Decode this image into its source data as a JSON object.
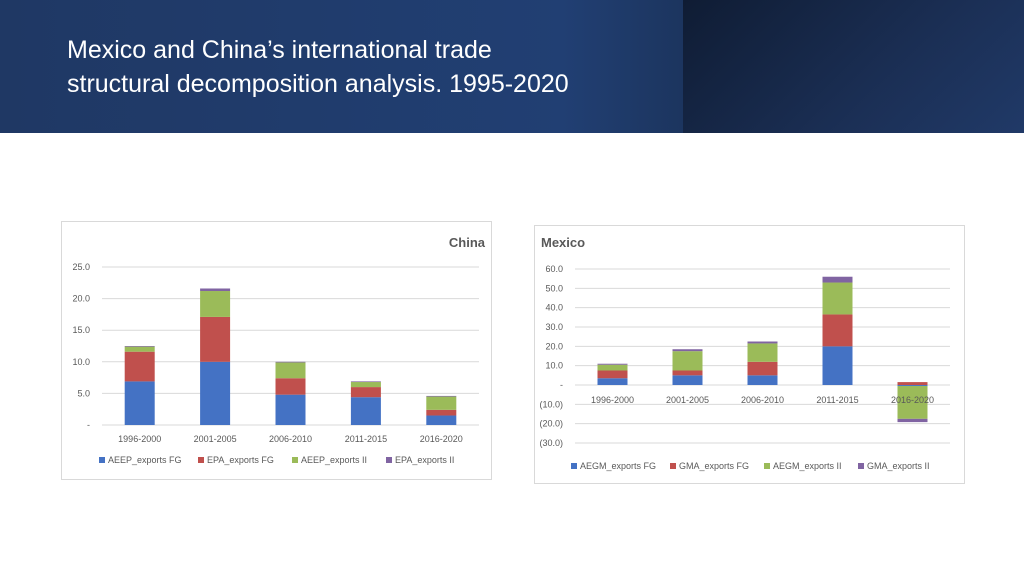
{
  "slide": {
    "title_line1": "Mexico and China’s international trade",
    "title_line2": "structural decomposition analysis. 1995-2020"
  },
  "colors": {
    "header_bg": "#1f3864",
    "series1": "#4472c4",
    "series2": "#c0504d",
    "series3": "#9bbb59",
    "series4": "#8064a2",
    "gridline": "#d9d9d9",
    "text": "#595959"
  },
  "chart_data": [
    {
      "id": "china",
      "type": "bar",
      "stacked": true,
      "title": "China",
      "categories": [
        "1996-2000",
        "2001-2005",
        "2006-2010",
        "2011-2015",
        "2016-2020"
      ],
      "ylim": [
        0,
        25
      ],
      "yticks": [
        0,
        5,
        10,
        15,
        20,
        25
      ],
      "ytick_labels": [
        "-",
        "5.0",
        "10.0",
        "15.0",
        "20.0",
        "25.0"
      ],
      "grid": true,
      "legend_position": "bottom",
      "series": [
        {
          "name": "AEEP_exports FG",
          "values": [
            6.9,
            10.0,
            4.8,
            4.4,
            1.5
          ]
        },
        {
          "name": "EPA_exports FG",
          "values": [
            4.7,
            7.1,
            2.6,
            1.6,
            0.9
          ]
        },
        {
          "name": "AEEP_exports II",
          "values": [
            0.8,
            4.1,
            2.5,
            0.8,
            2.1
          ]
        },
        {
          "name": "EPA_exports II",
          "values": [
            0.1,
            0.4,
            0.1,
            0.1,
            0.1
          ]
        }
      ]
    },
    {
      "id": "mexico",
      "type": "bar",
      "stacked": true,
      "title": "Mexico",
      "categories": [
        "1996-2000",
        "2001-2005",
        "2006-2010",
        "2011-2015",
        "2016-2020"
      ],
      "ylim": [
        -30,
        60
      ],
      "yticks": [
        -30,
        -20,
        -10,
        0,
        10,
        20,
        30,
        40,
        50,
        60
      ],
      "ytick_labels": [
        "(30.0)",
        "(20.0)",
        "(10.0)",
        "-",
        "10.0",
        "20.0",
        "30.0",
        "40.0",
        "50.0",
        "60.0"
      ],
      "grid": true,
      "legend_position": "bottom",
      "series": [
        {
          "name": "AEGM_exports FG",
          "values": [
            3.5,
            5.0,
            5.0,
            20.0,
            -0.5
          ]
        },
        {
          "name": "GMA_exports FG",
          "values": [
            4.0,
            2.5,
            7.0,
            16.5,
            1.5
          ]
        },
        {
          "name": "AEGM_exports II",
          "values": [
            3.0,
            10.0,
            9.5,
            16.5,
            -17.0
          ]
        },
        {
          "name": "GMA_exports II",
          "values": [
            0.5,
            1.0,
            1.0,
            3.0,
            -1.7
          ]
        }
      ]
    }
  ]
}
